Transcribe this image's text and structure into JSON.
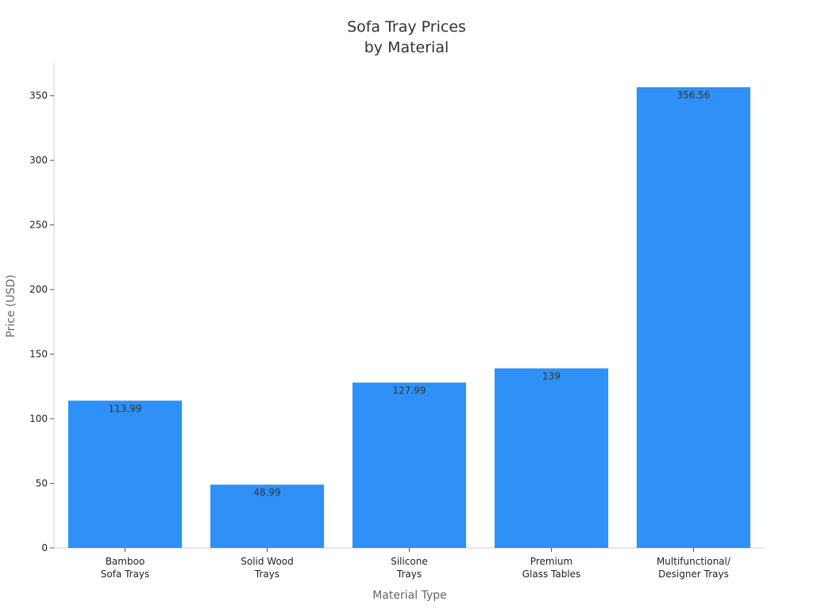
{
  "chart_data": {
    "type": "bar",
    "title": "Sofa Tray Prices\nby Material",
    "x_label": "Material Type",
    "y_label": "Price (USD)",
    "categories": [
      "Bamboo\nSofa Trays",
      "Solid Wood\nTrays",
      "Silicone\nTrays",
      "Premium\nGlass Tables",
      "Multifunctional/\nDesigner Trays"
    ],
    "values": [
      113.99,
      48.99,
      127.99,
      139,
      356.56
    ],
    "color": "#2f91f7",
    "ylim": [
      0,
      375
    ],
    "yticks": [
      0,
      50,
      100,
      150,
      200,
      250,
      300,
      350
    ],
    "grid": false
  }
}
